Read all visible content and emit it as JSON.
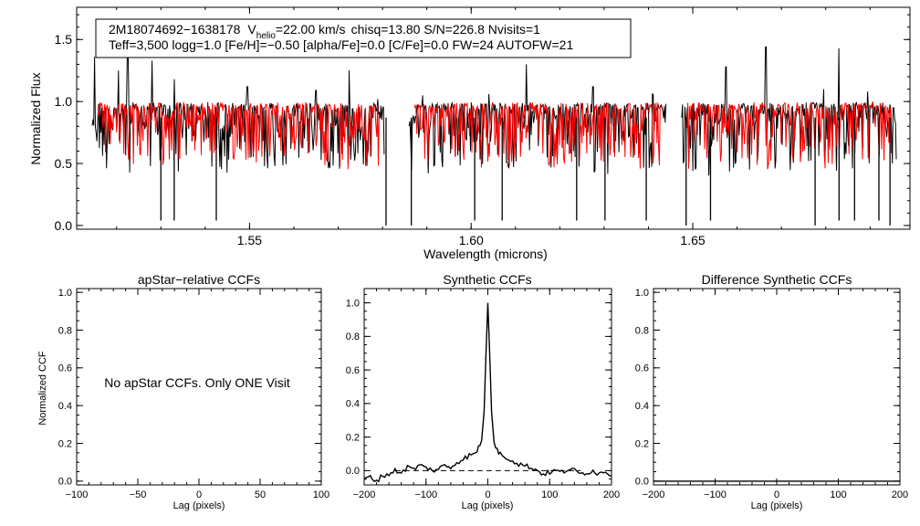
{
  "figure": {
    "colors": {
      "observed": "#000000",
      "model": "#ff0000",
      "axis": "#000000"
    }
  },
  "chart_data": [
    {
      "id": "spectrum",
      "type": "line",
      "xlabel": "Wavelength (microns)",
      "ylabel": "Normalized Flux",
      "xlim": [
        1.511,
        1.699
      ],
      "ylim": [
        -0.03,
        1.76
      ],
      "x_ticks": [
        "1.55",
        "1.60",
        "1.65"
      ],
      "y_ticks": [
        "0.0",
        "0.5",
        "1.0",
        "1.5"
      ],
      "annotation": {
        "object": "2M18074692−1638178",
        "v_prefix": "V",
        "v_subscript": "helio",
        "v_value": "=22.00 km/s",
        "rest1": "chisq=13.80  S/N=226.8  Nvisits=1",
        "line2": "Teff=3,500 logg=1.0 [Fe/H]=−0.50 [alpha/Fe]=0.0 [C/Fe]=0.0 FW=24 AUTOFW=21"
      },
      "detectors": [
        [
          1.5145,
          1.5805
        ],
        [
          1.586,
          1.644
        ],
        [
          1.6475,
          1.696
        ]
      ],
      "continuum": 0.97,
      "emission_lines": [
        [
          1.515,
          1.36
        ],
        [
          1.5205,
          1.25
        ],
        [
          1.5225,
          1.42
        ],
        [
          1.528,
          1.33
        ],
        [
          1.533,
          1.18
        ],
        [
          1.5495,
          1.12
        ],
        [
          1.565,
          1.09
        ],
        [
          1.5725,
          1.25
        ],
        [
          1.579,
          1.02
        ],
        [
          1.589,
          1.05
        ],
        [
          1.604,
          1.06
        ],
        [
          1.6125,
          1.3
        ],
        [
          1.6275,
          1.12
        ],
        [
          1.641,
          1.06
        ],
        [
          1.6575,
          1.28
        ],
        [
          1.6665,
          1.44
        ],
        [
          1.6795,
          1.1
        ],
        [
          1.683,
          1.43
        ],
        [
          1.6895,
          1.08
        ]
      ],
      "deep_absorption": [
        [
          1.53,
          0.04
        ],
        [
          1.533,
          0.04
        ],
        [
          1.5425,
          0.04
        ],
        [
          1.5808,
          0.0
        ],
        [
          1.5865,
          0.0
        ],
        [
          1.6008,
          0.04
        ],
        [
          1.607,
          0.04
        ],
        [
          1.6238,
          0.04
        ],
        [
          1.6302,
          0.04
        ],
        [
          1.6395,
          0.04
        ],
        [
          1.6485,
          0.0
        ],
        [
          1.654,
          0.04
        ],
        [
          1.6776,
          0.0
        ],
        [
          1.683,
          0.04
        ],
        [
          1.6865,
          0.04
        ],
        [
          1.692,
          0.04
        ],
        [
          1.6945,
          0.0
        ]
      ]
    },
    {
      "id": "apstar-ccf",
      "type": "line",
      "title": "apStar−relative CCFs",
      "xlabel": "Lag (pixels)",
      "ylabel": "Normalized CCF",
      "xlim": [
        -100,
        100
      ],
      "ylim": [
        -0.02,
        1.02
      ],
      "x_ticks": [
        -100,
        -50,
        0,
        50,
        100
      ],
      "y_ticks": [
        "0.0",
        "0.2",
        "0.4",
        "0.6",
        "0.8",
        "1.0"
      ],
      "message": "No apStar CCFs.  Only ONE Visit",
      "series": []
    },
    {
      "id": "synthetic-ccf",
      "type": "line",
      "title": "Synthetic CCFs",
      "xlabel": "Lag (pixels)",
      "xlim": [
        -200,
        200
      ],
      "ylim": [
        -0.085,
        1.085
      ],
      "x_ticks": [
        -200,
        -100,
        0,
        100,
        200
      ],
      "y_ticks": [
        "0.0",
        "0.2",
        "0.4",
        "0.6",
        "0.8",
        "1.0"
      ],
      "baseline": 0.0,
      "series": [
        {
          "name": "synthetic CCF",
          "points": [
            [
              -200,
              -0.05
            ],
            [
              -190,
              -0.04
            ],
            [
              -180,
              -0.06
            ],
            [
              -170,
              -0.03
            ],
            [
              -160,
              -0.02
            ],
            [
              -150,
              0.0
            ],
            [
              -140,
              -0.01
            ],
            [
              -130,
              0.02
            ],
            [
              -120,
              0.01
            ],
            [
              -110,
              0.03
            ],
            [
              -100,
              0.02
            ],
            [
              -90,
              0.0
            ],
            [
              -80,
              0.01
            ],
            [
              -70,
              0.03
            ],
            [
              -60,
              0.02
            ],
            [
              -50,
              0.05
            ],
            [
              -40,
              0.07
            ],
            [
              -30,
              0.09
            ],
            [
              -20,
              0.1
            ],
            [
              -15,
              0.14
            ],
            [
              -10,
              0.18
            ],
            [
              -6,
              0.35
            ],
            [
              -3,
              0.7
            ],
            [
              0,
              1.0
            ],
            [
              3,
              0.7
            ],
            [
              6,
              0.35
            ],
            [
              10,
              0.17
            ],
            [
              15,
              0.12
            ],
            [
              20,
              0.1
            ],
            [
              30,
              0.08
            ],
            [
              40,
              0.06
            ],
            [
              50,
              0.04
            ],
            [
              60,
              0.03
            ],
            [
              70,
              0.02
            ],
            [
              80,
              0.0
            ],
            [
              90,
              -0.02
            ],
            [
              100,
              -0.01
            ],
            [
              110,
              0.0
            ],
            [
              120,
              -0.01
            ],
            [
              130,
              0.01
            ],
            [
              140,
              0.0
            ],
            [
              150,
              -0.02
            ],
            [
              160,
              -0.01
            ],
            [
              170,
              0.0
            ],
            [
              180,
              -0.02
            ],
            [
              190,
              0.0
            ],
            [
              200,
              -0.03
            ]
          ]
        }
      ]
    },
    {
      "id": "difference-ccf",
      "type": "line",
      "title": "Difference Synthetic CCFs",
      "xlim": [
        -200,
        200
      ],
      "ylim": [
        -0.02,
        1.02
      ],
      "x_ticks": [
        -200,
        -100,
        0,
        100,
        200
      ],
      "y_ticks": [
        "0.0",
        "0.2",
        "0.4",
        "0.6",
        "0.8",
        "1.0"
      ],
      "xlabel": "Lag (pixels)",
      "series": [
        {
          "name": "difference",
          "points": [
            [
              -200,
              0.0
            ],
            [
              200,
              0.0
            ]
          ]
        }
      ]
    }
  ]
}
